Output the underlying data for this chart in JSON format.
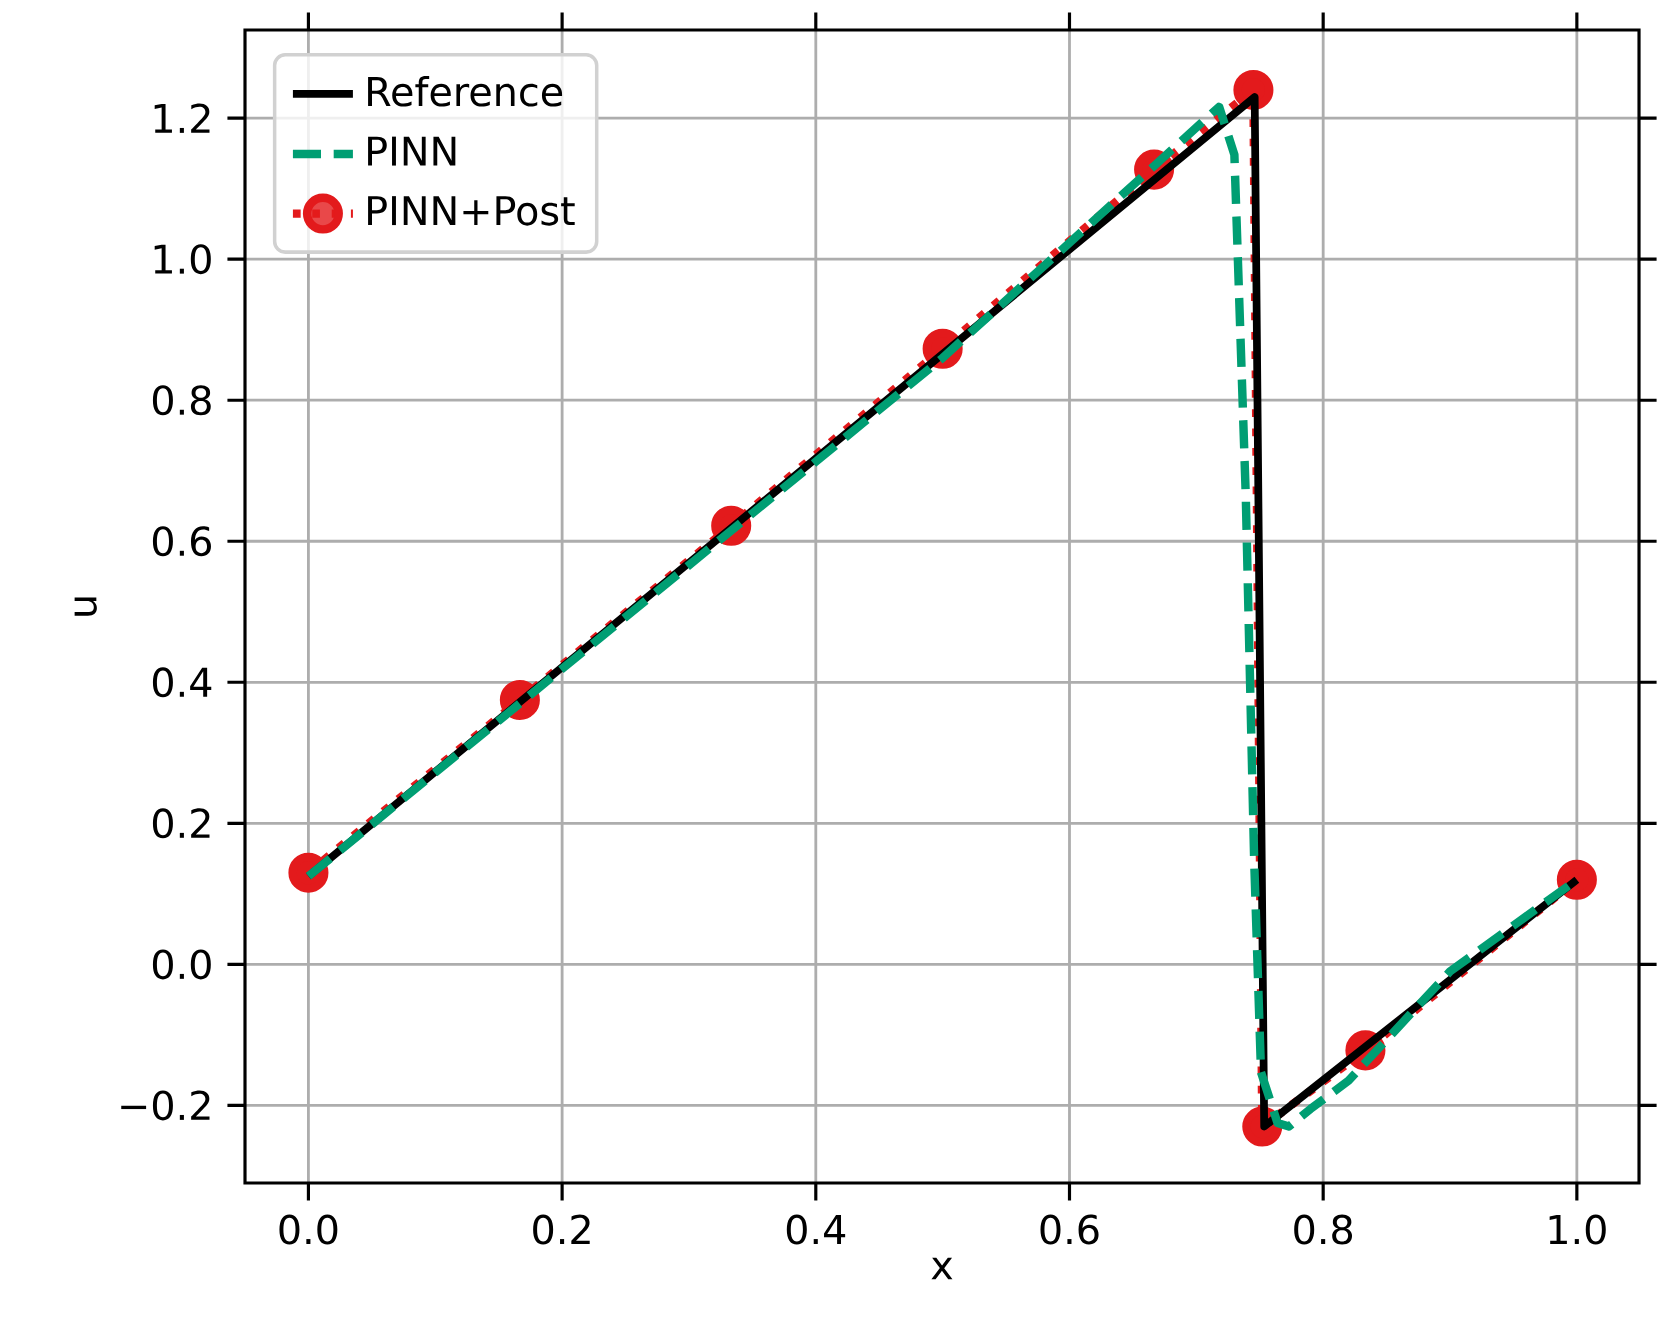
{
  "chart_data": {
    "type": "line",
    "xlabel": "x",
    "ylabel": "u",
    "xlim": [
      -0.05,
      1.049
    ],
    "ylim": [
      -0.31,
      1.325
    ],
    "xticks": [
      {
        "value": 0,
        "label": "0.0"
      },
      0.2,
      0.4,
      0.6,
      0.8,
      {
        "value": 1,
        "label": "1.0"
      }
    ],
    "yticks": [
      {
        "value": -0.2,
        "label": "−0.2"
      },
      {
        "value": 0,
        "label": "0.0"
      },
      0.2,
      0.4,
      0.6,
      0.8,
      {
        "value": 1,
        "label": "1.0"
      },
      1.2
    ],
    "grid": true,
    "legend": "top left",
    "series": [
      {
        "name": "Reference",
        "color": "#000000",
        "line_style": "solid",
        "marker": "none",
        "x": [
          0,
          0.746,
          0.7535,
          1
        ],
        "values": [
          0.125,
          1.23,
          -0.23,
          0.12
        ]
      },
      {
        "name": "PINN",
        "color": "#009e73",
        "line_style": "dashed",
        "marker": "none",
        "x": [
          0,
          0.5,
          0.718,
          0.73,
          0.739,
          0.7456,
          0.751,
          0.764,
          0.773,
          0.79,
          0.82,
          0.9,
          1
        ],
        "values": [
          0.125,
          0.86,
          1.216,
          1.148,
          0.663,
          0.147,
          -0.153,
          -0.225,
          -0.23,
          -0.205,
          -0.165,
          -0.01,
          0.12
        ]
      },
      {
        "name": "PINN+Post",
        "color": "#e31a1c",
        "line_style": "dotted",
        "marker": "circle",
        "x": [
          0,
          0.1667,
          0.3333,
          0.5,
          0.6667,
          0.745,
          0.752,
          0.8333,
          1
        ],
        "values": [
          0.13,
          0.375,
          0.622,
          0.873,
          1.127,
          1.24,
          -0.23,
          -0.122,
          0.12
        ]
      }
    ]
  }
}
